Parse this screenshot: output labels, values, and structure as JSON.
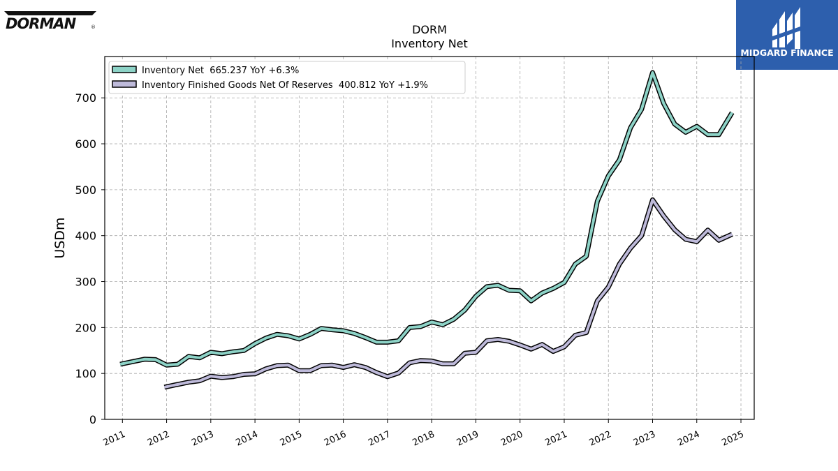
{
  "branding": {
    "left_logo": "DORMAN",
    "right_logo": "MIDGARD FINANCE",
    "right_logo_bg": "#2d5fad"
  },
  "chart_data": {
    "type": "line",
    "title": "DORM",
    "subtitle": "Inventory Net",
    "ylabel": "USDm",
    "xlabel": "",
    "ylim": [
      0,
      790
    ],
    "xlim": [
      2010.6,
      2025.3
    ],
    "yticks": [
      0,
      100,
      200,
      300,
      400,
      500,
      600,
      700
    ],
    "xticks": [
      "2011",
      "2012",
      "2013",
      "2014",
      "2015",
      "2016",
      "2017",
      "2018",
      "2019",
      "2020",
      "2021",
      "2022",
      "2023",
      "2024",
      "2025"
    ],
    "grid": true,
    "legend_position": "top-left",
    "series": [
      {
        "name": "Inventory Net  665.237 YoY +6.3%",
        "color": "#8dd3c7",
        "points": [
          [
            2010.95,
            120
          ],
          [
            2011.2,
            125
          ],
          [
            2011.5,
            131
          ],
          [
            2011.75,
            130
          ],
          [
            2012.0,
            118
          ],
          [
            2012.25,
            120
          ],
          [
            2012.5,
            137
          ],
          [
            2012.75,
            134
          ],
          [
            2013.0,
            146
          ],
          [
            2013.25,
            143
          ],
          [
            2013.5,
            147
          ],
          [
            2013.75,
            150
          ],
          [
            2014.0,
            165
          ],
          [
            2014.25,
            177
          ],
          [
            2014.5,
            185
          ],
          [
            2014.75,
            182
          ],
          [
            2015.0,
            175
          ],
          [
            2015.25,
            185
          ],
          [
            2015.5,
            198
          ],
          [
            2015.75,
            195
          ],
          [
            2016.0,
            193
          ],
          [
            2016.25,
            187
          ],
          [
            2016.5,
            178
          ],
          [
            2016.75,
            168
          ],
          [
            2017.0,
            168
          ],
          [
            2017.25,
            171
          ],
          [
            2017.5,
            200
          ],
          [
            2017.75,
            202
          ],
          [
            2018.0,
            212
          ],
          [
            2018.25,
            206
          ],
          [
            2018.5,
            218
          ],
          [
            2018.75,
            238
          ],
          [
            2019.0,
            268
          ],
          [
            2019.25,
            289
          ],
          [
            2019.5,
            292
          ],
          [
            2019.75,
            281
          ],
          [
            2020.0,
            280
          ],
          [
            2020.25,
            258
          ],
          [
            2020.5,
            275
          ],
          [
            2020.75,
            285
          ],
          [
            2021.0,
            298
          ],
          [
            2021.25,
            338
          ],
          [
            2021.5,
            355
          ],
          [
            2021.75,
            475
          ],
          [
            2022.0,
            530
          ],
          [
            2022.25,
            565
          ],
          [
            2022.5,
            635
          ],
          [
            2022.75,
            675
          ],
          [
            2023.0,
            755
          ],
          [
            2023.25,
            688
          ],
          [
            2023.5,
            643
          ],
          [
            2023.75,
            625
          ],
          [
            2024.0,
            638
          ],
          [
            2024.25,
            620
          ],
          [
            2024.5,
            620
          ],
          [
            2024.8,
            668
          ]
        ]
      },
      {
        "name": "Inventory Finished Goods Net Of Reserves  400.812 YoY +1.9%",
        "color": "#bebada",
        "points": [
          [
            2011.95,
            70
          ],
          [
            2012.2,
            75
          ],
          [
            2012.5,
            81
          ],
          [
            2012.75,
            84
          ],
          [
            2013.0,
            94
          ],
          [
            2013.25,
            91
          ],
          [
            2013.5,
            93
          ],
          [
            2013.75,
            98
          ],
          [
            2014.0,
            99
          ],
          [
            2014.25,
            110
          ],
          [
            2014.5,
            117
          ],
          [
            2014.75,
            118
          ],
          [
            2015.0,
            106
          ],
          [
            2015.25,
            106
          ],
          [
            2015.5,
            117
          ],
          [
            2015.75,
            118
          ],
          [
            2016.0,
            113
          ],
          [
            2016.25,
            119
          ],
          [
            2016.5,
            113
          ],
          [
            2016.75,
            102
          ],
          [
            2017.0,
            93
          ],
          [
            2017.25,
            101
          ],
          [
            2017.5,
            123
          ],
          [
            2017.75,
            128
          ],
          [
            2018.0,
            127
          ],
          [
            2018.25,
            121
          ],
          [
            2018.5,
            121
          ],
          [
            2018.75,
            144
          ],
          [
            2019.0,
            146
          ],
          [
            2019.25,
            171
          ],
          [
            2019.5,
            174
          ],
          [
            2019.75,
            170
          ],
          [
            2020.0,
            162
          ],
          [
            2020.25,
            153
          ],
          [
            2020.5,
            163
          ],
          [
            2020.75,
            148
          ],
          [
            2021.0,
            158
          ],
          [
            2021.25,
            183
          ],
          [
            2021.5,
            189
          ],
          [
            2021.75,
            258
          ],
          [
            2022.0,
            288
          ],
          [
            2022.25,
            338
          ],
          [
            2022.5,
            373
          ],
          [
            2022.75,
            400
          ],
          [
            2023.0,
            478
          ],
          [
            2023.25,
            443
          ],
          [
            2023.5,
            413
          ],
          [
            2023.75,
            392
          ],
          [
            2024.0,
            387
          ],
          [
            2024.25,
            412
          ],
          [
            2024.5,
            390
          ],
          [
            2024.8,
            403
          ]
        ]
      }
    ]
  }
}
